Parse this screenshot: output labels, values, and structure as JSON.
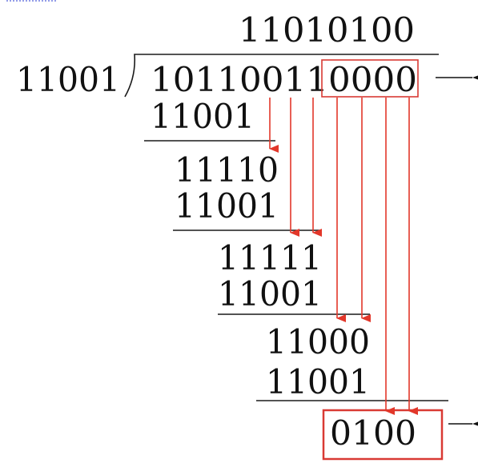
{
  "quotient": "11010100",
  "divisor": "11001",
  "dividend": "101100110000",
  "steps": [
    {
      "subtrahend": "11001",
      "remainder": "11110"
    },
    {
      "subtrahend": "11001",
      "remainder": "11111"
    },
    {
      "subtrahend": "11001",
      "remainder": "11000"
    },
    {
      "subtrahend": "11001",
      "remainder": "0100"
    }
  ],
  "colors": {
    "digits": "#111111",
    "arrows": "#e2372a",
    "highlight_box": "#d93a34"
  }
}
